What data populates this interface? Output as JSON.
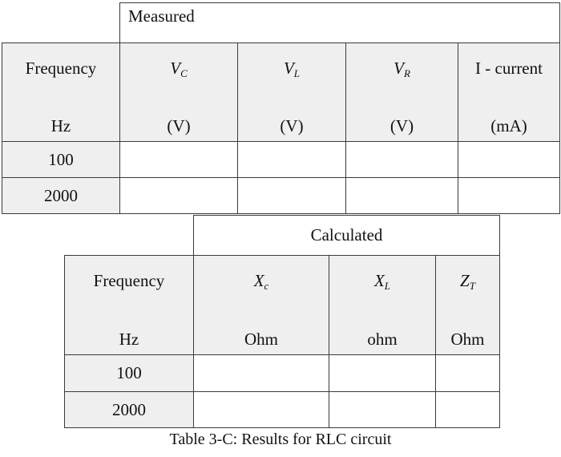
{
  "measured_table": {
    "group_label": "Measured",
    "columns": [
      {
        "line1": "Frequency",
        "line2": "Hz"
      },
      {
        "symbol": "V",
        "sub": "C",
        "line2": "(V)"
      },
      {
        "symbol": "V",
        "sub": "L",
        "line2": "(V)"
      },
      {
        "symbol": "V",
        "sub": "R",
        "line2": "(V)"
      },
      {
        "line1": "I - current",
        "line2": "(mA)"
      }
    ],
    "rows": [
      {
        "frequency": "100"
      },
      {
        "frequency": "2000"
      }
    ]
  },
  "calculated_table": {
    "group_label": "Calculated",
    "columns": [
      {
        "line1": "Frequency",
        "line2": "Hz"
      },
      {
        "symbol": "X",
        "sub": "c",
        "line2": "Ohm"
      },
      {
        "symbol": "X",
        "sub": "L",
        "line2": "ohm"
      },
      {
        "symbol": "Z",
        "sub": "T",
        "line2": "Ohm"
      }
    ],
    "rows": [
      {
        "frequency": "100"
      },
      {
        "frequency": "2000"
      }
    ]
  },
  "caption": "Table 3-C: Results for RLC circuit"
}
